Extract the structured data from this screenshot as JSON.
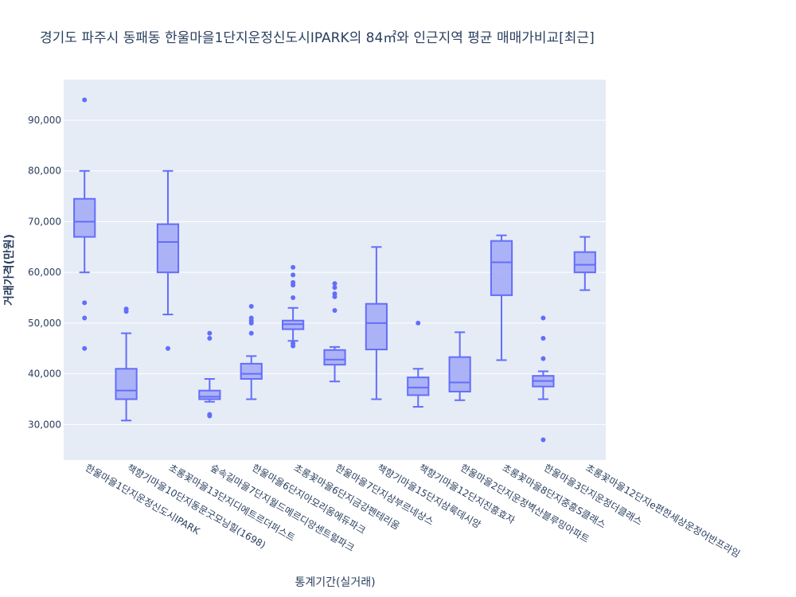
{
  "chart_data": {
    "type": "box",
    "title": "경기도 파주시 동패동 한울마을1단지운정신도시IPARK의 84㎡와 인근지역 평균 매매가비교[최근]",
    "xlabel": "통계기간(실거래)",
    "ylabel": "거래가격(만원)",
    "ylim": [
      23000,
      98000
    ],
    "yticks": [
      30000,
      40000,
      50000,
      60000,
      70000,
      80000,
      90000
    ],
    "ytick_labels": [
      "30,000",
      "40,000",
      "50,000",
      "60,000",
      "70,000",
      "80,000",
      "90,000"
    ],
    "grid": true,
    "colors": {
      "plot_bg": "#e5ecf6",
      "line": "#636efa",
      "fill": "#a5acf6",
      "grid": "#ffffff",
      "text": "#2a3f5f"
    },
    "categories": [
      "한울마을1단지운정신도시IPARK",
      "책향기마을10단지동문굿모닝힐(1698)",
      "초롱꽃마을13단지디에트르더퍼스트",
      "숲속길마을7단지월드메르디앙센트럴파크",
      "한울마을6단지아모리움에듀파크",
      "초롱꽃마을6단지금강펜테리움",
      "한울마을7단지삼부르네상스",
      "책향기마을15단지삼룩데시앙",
      "책향기마을12단지진흥효자",
      "한울마을2단지운정벽산블루밍아파트",
      "초롱꽃마을8단지중흥S클래스",
      "한울마을3단지운정더클래스",
      "초롱꽃마을12단지e편한세상운정어반프라임"
    ],
    "boxes": [
      {
        "lower": 60000,
        "q1": 67000,
        "median": 70000,
        "q3": 74500,
        "upper": 80000,
        "outliers": [
          94000,
          54000,
          51000,
          45000
        ]
      },
      {
        "lower": 30800,
        "q1": 35000,
        "median": 36700,
        "q3": 41000,
        "upper": 48000,
        "outliers": [
          52800,
          52300
        ]
      },
      {
        "lower": 51700,
        "q1": 60000,
        "median": 66000,
        "q3": 69500,
        "upper": 80000,
        "outliers": [
          45000
        ]
      },
      {
        "lower": 34500,
        "q1": 35000,
        "median": 35500,
        "q3": 36700,
        "upper": 39000,
        "outliers": [
          48000,
          47000,
          32000,
          31700
        ]
      },
      {
        "lower": 35000,
        "q1": 39000,
        "median": 40000,
        "q3": 42000,
        "upper": 43500,
        "outliers": [
          53300,
          51000,
          50500,
          50000,
          48000
        ]
      },
      {
        "lower": 46500,
        "q1": 48800,
        "median": 49800,
        "q3": 50500,
        "upper": 53000,
        "outliers": [
          61000,
          59500,
          58000,
          57500,
          55000,
          46000,
          45500
        ]
      },
      {
        "lower": 38500,
        "q1": 41800,
        "median": 42800,
        "q3": 44700,
        "upper": 45300,
        "outliers": [
          57800,
          57000,
          55800,
          55200,
          52500
        ]
      },
      {
        "lower": 35000,
        "q1": 44800,
        "median": 50000,
        "q3": 53800,
        "upper": 65000,
        "outliers": []
      },
      {
        "lower": 33500,
        "q1": 35800,
        "median": 37300,
        "q3": 39300,
        "upper": 41000,
        "outliers": [
          50000
        ]
      },
      {
        "lower": 34800,
        "q1": 36500,
        "median": 38300,
        "q3": 43300,
        "upper": 48200,
        "outliers": []
      },
      {
        "lower": 42700,
        "q1": 55500,
        "median": 62000,
        "q3": 66200,
        "upper": 67300,
        "outliers": []
      },
      {
        "lower": 35000,
        "q1": 37500,
        "median": 38600,
        "q3": 39600,
        "upper": 40500,
        "outliers": [
          51000,
          47000,
          43000,
          27000
        ]
      },
      {
        "lower": 56500,
        "q1": 60000,
        "median": 61500,
        "q3": 64000,
        "upper": 67000,
        "outliers": []
      }
    ]
  }
}
